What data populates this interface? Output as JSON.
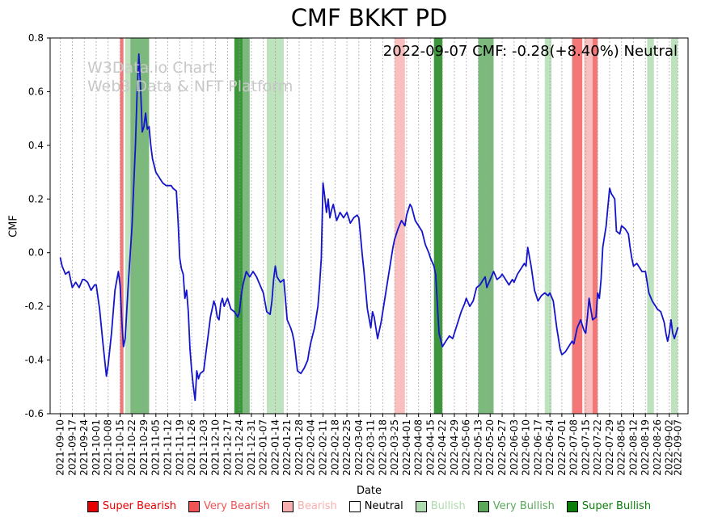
{
  "watermark": {
    "line1": "W3Data.io Chart",
    "line2": "Web3 Data & NFT Platform"
  },
  "legend": {
    "items": [
      {
        "label": "Super Bearish",
        "category": "super_bearish"
      },
      {
        "label": "Very Bearish",
        "category": "very_bearish"
      },
      {
        "label": "Bearish",
        "category": "bearish"
      },
      {
        "label": "Neutral",
        "category": "neutral"
      },
      {
        "label": "Bullish",
        "category": "bullish"
      },
      {
        "label": "Very Bullish",
        "category": "very_bullish"
      },
      {
        "label": "Super Bullish",
        "category": "super_bullish"
      }
    ]
  },
  "chart_data": {
    "type": "line",
    "title": "CMF BKKT PD",
    "annotation": "2022-09-07 CMF: -0.28(+8.40%) Neutral",
    "grid": "vertical-dashed",
    "legend_position": "bottom",
    "x_axis": {
      "label": "Date",
      "start": "2021-09-10",
      "end": "2022-09-07",
      "ticks": [
        "2021-09-10",
        "2021-09-17",
        "2021-09-24",
        "2021-10-01",
        "2021-10-08",
        "2021-10-15",
        "2021-10-22",
        "2021-10-29",
        "2021-11-05",
        "2021-11-12",
        "2021-11-19",
        "2021-11-26",
        "2021-12-03",
        "2021-12-10",
        "2021-12-17",
        "2021-12-24",
        "2021-12-31",
        "2022-01-07",
        "2022-01-14",
        "2022-01-21",
        "2022-01-28",
        "2022-02-04",
        "2022-02-11",
        "2022-02-18",
        "2022-02-25",
        "2022-03-04",
        "2022-03-11",
        "2022-03-18",
        "2022-03-25",
        "2022-04-01",
        "2022-04-08",
        "2022-04-15",
        "2022-04-22",
        "2022-04-29",
        "2022-05-06",
        "2022-05-13",
        "2022-05-20",
        "2022-05-27",
        "2022-06-03",
        "2022-06-10",
        "2022-06-17",
        "2022-06-24",
        "2022-07-01",
        "2022-07-08",
        "2022-07-15",
        "2022-07-22",
        "2022-07-29",
        "2022-08-05",
        "2022-08-12",
        "2022-08-19",
        "2022-08-26",
        "2022-09-02",
        "2022-09-07"
      ]
    },
    "y_axis": {
      "label": "CMF",
      "lim": [
        -0.6,
        0.8
      ],
      "ticks": [
        0.8,
        0.6,
        0.4,
        0.2,
        0.0,
        -0.2,
        -0.4,
        -0.6
      ]
    },
    "palette": {
      "super_bearish": "#e80000",
      "very_bearish": "#f15454",
      "bearish": "#f7aeae",
      "neutral": "#ffffff",
      "bullish": "#addbad",
      "very_bullish": "#5ba85b",
      "super_bullish": "#0b7d0b"
    },
    "bands": [
      {
        "start": "2021-10-15",
        "end": "2021-10-17",
        "category": "very_bearish"
      },
      {
        "start": "2021-10-18",
        "end": "2021-10-21",
        "category": "bullish"
      },
      {
        "start": "2021-10-21",
        "end": "2021-11-01",
        "category": "very_bullish"
      },
      {
        "start": "2021-12-21",
        "end": "2021-12-26",
        "category": "super_bullish"
      },
      {
        "start": "2021-12-26",
        "end": "2021-12-30",
        "category": "very_bullish"
      },
      {
        "start": "2022-01-09",
        "end": "2022-01-19",
        "category": "bullish"
      },
      {
        "start": "2022-03-25",
        "end": "2022-03-31",
        "category": "bearish"
      },
      {
        "start": "2022-04-17",
        "end": "2022-04-22",
        "category": "super_bullish"
      },
      {
        "start": "2022-05-13",
        "end": "2022-05-22",
        "category": "very_bullish"
      },
      {
        "start": "2022-06-21",
        "end": "2022-06-25",
        "category": "bullish"
      },
      {
        "start": "2022-07-07",
        "end": "2022-07-13",
        "category": "very_bearish"
      },
      {
        "start": "2022-07-14",
        "end": "2022-07-19",
        "category": "bearish"
      },
      {
        "start": "2022-07-19",
        "end": "2022-07-22",
        "category": "very_bearish"
      },
      {
        "start": "2022-08-20",
        "end": "2022-08-24",
        "category": "bullish"
      },
      {
        "start": "2022-09-03",
        "end": "2022-09-07",
        "category": "bullish"
      }
    ],
    "series": [
      {
        "name": "CMF",
        "color": "#1414cc",
        "x_unit": "days since 2021-09-10",
        "points": [
          [
            0,
            -0.02
          ],
          [
            1,
            -0.05
          ],
          [
            3,
            -0.08
          ],
          [
            5,
            -0.07
          ],
          [
            7,
            -0.13
          ],
          [
            9,
            -0.11
          ],
          [
            11,
            -0.13
          ],
          [
            13,
            -0.1
          ],
          [
            14,
            -0.1
          ],
          [
            16,
            -0.11
          ],
          [
            18,
            -0.14
          ],
          [
            20,
            -0.12
          ],
          [
            21,
            -0.12
          ],
          [
            23,
            -0.21
          ],
          [
            25,
            -0.34
          ],
          [
            27,
            -0.46
          ],
          [
            28,
            -0.42
          ],
          [
            30,
            -0.3
          ],
          [
            32,
            -0.14
          ],
          [
            34,
            -0.07
          ],
          [
            35,
            -0.12
          ],
          [
            36,
            -0.25
          ],
          [
            37,
            -0.35
          ],
          [
            38,
            -0.32
          ],
          [
            40,
            -0.1
          ],
          [
            42,
            0.1
          ],
          [
            44,
            0.4
          ],
          [
            45,
            0.6
          ],
          [
            46,
            0.74
          ],
          [
            47,
            0.62
          ],
          [
            48,
            0.45
          ],
          [
            49,
            0.47
          ],
          [
            50,
            0.52
          ],
          [
            51,
            0.46
          ],
          [
            52,
            0.47
          ],
          [
            53,
            0.4
          ],
          [
            54,
            0.35
          ],
          [
            56,
            0.3
          ],
          [
            58,
            0.28
          ],
          [
            60,
            0.26
          ],
          [
            62,
            0.25
          ],
          [
            63,
            0.25
          ],
          [
            65,
            0.25
          ],
          [
            66,
            0.24
          ],
          [
            68,
            0.23
          ],
          [
            69,
            0.12
          ],
          [
            70,
            -0.02
          ],
          [
            71,
            -0.06
          ],
          [
            72,
            -0.08
          ],
          [
            73,
            -0.17
          ],
          [
            74,
            -0.14
          ],
          [
            75,
            -0.22
          ],
          [
            76,
            -0.36
          ],
          [
            77,
            -0.44
          ],
          [
            78,
            -0.5
          ],
          [
            79,
            -0.55
          ],
          [
            80,
            -0.44
          ],
          [
            81,
            -0.47
          ],
          [
            82,
            -0.45
          ],
          [
            84,
            -0.44
          ],
          [
            86,
            -0.34
          ],
          [
            88,
            -0.24
          ],
          [
            90,
            -0.18
          ],
          [
            91,
            -0.2
          ],
          [
            92,
            -0.24
          ],
          [
            93,
            -0.25
          ],
          [
            94,
            -0.19
          ],
          [
            95,
            -0.17
          ],
          [
            96,
            -0.2
          ],
          [
            98,
            -0.17
          ],
          [
            100,
            -0.21
          ],
          [
            102,
            -0.22
          ],
          [
            104,
            -0.24
          ],
          [
            105,
            -0.22
          ],
          [
            106,
            -0.16
          ],
          [
            107,
            -0.12
          ],
          [
            109,
            -0.07
          ],
          [
            111,
            -0.09
          ],
          [
            113,
            -0.07
          ],
          [
            115,
            -0.09
          ],
          [
            117,
            -0.12
          ],
          [
            119,
            -0.15
          ],
          [
            121,
            -0.22
          ],
          [
            123,
            -0.23
          ],
          [
            124,
            -0.18
          ],
          [
            125,
            -0.1
          ],
          [
            126,
            -0.05
          ],
          [
            127,
            -0.09
          ],
          [
            129,
            -0.11
          ],
          [
            131,
            -0.1
          ],
          [
            133,
            -0.25
          ],
          [
            135,
            -0.28
          ],
          [
            136,
            -0.3
          ],
          [
            137,
            -0.33
          ],
          [
            139,
            -0.44
          ],
          [
            141,
            -0.45
          ],
          [
            143,
            -0.43
          ],
          [
            145,
            -0.4
          ],
          [
            146,
            -0.36
          ],
          [
            147,
            -0.33
          ],
          [
            149,
            -0.28
          ],
          [
            151,
            -0.2
          ],
          [
            152,
            -0.12
          ],
          [
            153,
            -0.02
          ],
          [
            154,
            0.26
          ],
          [
            155,
            0.21
          ],
          [
            156,
            0.15
          ],
          [
            157,
            0.2
          ],
          [
            158,
            0.13
          ],
          [
            159,
            0.16
          ],
          [
            160,
            0.18
          ],
          [
            161,
            0.15
          ],
          [
            162,
            0.12
          ],
          [
            164,
            0.15
          ],
          [
            166,
            0.13
          ],
          [
            168,
            0.15
          ],
          [
            170,
            0.11
          ],
          [
            172,
            0.13
          ],
          [
            174,
            0.14
          ],
          [
            175,
            0.13
          ],
          [
            176,
            0.06
          ],
          [
            177,
            -0.01
          ],
          [
            178,
            -0.07
          ],
          [
            180,
            -0.21
          ],
          [
            182,
            -0.28
          ],
          [
            183,
            -0.22
          ],
          [
            184,
            -0.24
          ],
          [
            186,
            -0.32
          ],
          [
            188,
            -0.26
          ],
          [
            189,
            -0.22
          ],
          [
            191,
            -0.14
          ],
          [
            193,
            -0.06
          ],
          [
            195,
            0.02
          ],
          [
            196,
            0.05
          ],
          [
            198,
            0.09
          ],
          [
            200,
            0.12
          ],
          [
            202,
            0.1
          ],
          [
            203,
            0.14
          ],
          [
            205,
            0.18
          ],
          [
            206,
            0.17
          ],
          [
            208,
            0.12
          ],
          [
            210,
            0.1
          ],
          [
            212,
            0.08
          ],
          [
            214,
            0.03
          ],
          [
            216,
            0
          ],
          [
            217,
            -0.02
          ],
          [
            219,
            -0.05
          ],
          [
            220,
            -0.08
          ],
          [
            222,
            -0.3
          ],
          [
            224,
            -0.35
          ],
          [
            226,
            -0.33
          ],
          [
            228,
            -0.31
          ],
          [
            230,
            -0.32
          ],
          [
            231,
            -0.3
          ],
          [
            233,
            -0.26
          ],
          [
            235,
            -0.22
          ],
          [
            237,
            -0.19
          ],
          [
            238,
            -0.17
          ],
          [
            240,
            -0.2
          ],
          [
            242,
            -0.18
          ],
          [
            244,
            -0.13
          ],
          [
            246,
            -0.12
          ],
          [
            248,
            -0.1
          ],
          [
            249,
            -0.09
          ],
          [
            250,
            -0.13
          ],
          [
            252,
            -0.1
          ],
          [
            254,
            -0.07
          ],
          [
            256,
            -0.1
          ],
          [
            258,
            -0.09
          ],
          [
            259,
            -0.08
          ],
          [
            261,
            -0.1
          ],
          [
            263,
            -0.12
          ],
          [
            265,
            -0.1
          ],
          [
            266,
            -0.11
          ],
          [
            268,
            -0.08
          ],
          [
            270,
            -0.06
          ],
          [
            272,
            -0.04
          ],
          [
            273,
            -0.05
          ],
          [
            274,
            0.02
          ],
          [
            276,
            -0.05
          ],
          [
            278,
            -0.14
          ],
          [
            280,
            -0.18
          ],
          [
            282,
            -0.16
          ],
          [
            284,
            -0.15
          ],
          [
            286,
            -0.16
          ],
          [
            287,
            -0.15
          ],
          [
            289,
            -0.18
          ],
          [
            291,
            -0.28
          ],
          [
            293,
            -0.36
          ],
          [
            294,
            -0.38
          ],
          [
            296,
            -0.37
          ],
          [
            298,
            -0.35
          ],
          [
            300,
            -0.33
          ],
          [
            301,
            -0.34
          ],
          [
            303,
            -0.28
          ],
          [
            305,
            -0.25
          ],
          [
            307,
            -0.29
          ],
          [
            308,
            -0.3
          ],
          [
            309,
            -0.24
          ],
          [
            310,
            -0.17
          ],
          [
            312,
            -0.25
          ],
          [
            314,
            -0.24
          ],
          [
            315,
            -0.15
          ],
          [
            316,
            -0.17
          ],
          [
            317,
            -0.1
          ],
          [
            318,
            0.02
          ],
          [
            320,
            0.1
          ],
          [
            321,
            0.17
          ],
          [
            322,
            0.24
          ],
          [
            323,
            0.22
          ],
          [
            325,
            0.2
          ],
          [
            326,
            0.08
          ],
          [
            328,
            0.07
          ],
          [
            329,
            0.1
          ],
          [
            331,
            0.09
          ],
          [
            333,
            0.07
          ],
          [
            334,
            0.02
          ],
          [
            335,
            -0.02
          ],
          [
            336,
            -0.05
          ],
          [
            338,
            -0.04
          ],
          [
            339,
            -0.05
          ],
          [
            341,
            -0.07
          ],
          [
            343,
            -0.07
          ],
          [
            344,
            -0.11
          ],
          [
            345,
            -0.15
          ],
          [
            347,
            -0.18
          ],
          [
            349,
            -0.2
          ],
          [
            350,
            -0.21
          ],
          [
            352,
            -0.22
          ],
          [
            353,
            -0.24
          ],
          [
            354,
            -0.26
          ],
          [
            355,
            -0.3
          ],
          [
            356,
            -0.33
          ],
          [
            357,
            -0.3
          ],
          [
            358,
            -0.25
          ],
          [
            359,
            -0.3
          ],
          [
            360,
            -0.32
          ],
          [
            361,
            -0.3
          ],
          [
            362,
            -0.28
          ]
        ]
      }
    ]
  }
}
